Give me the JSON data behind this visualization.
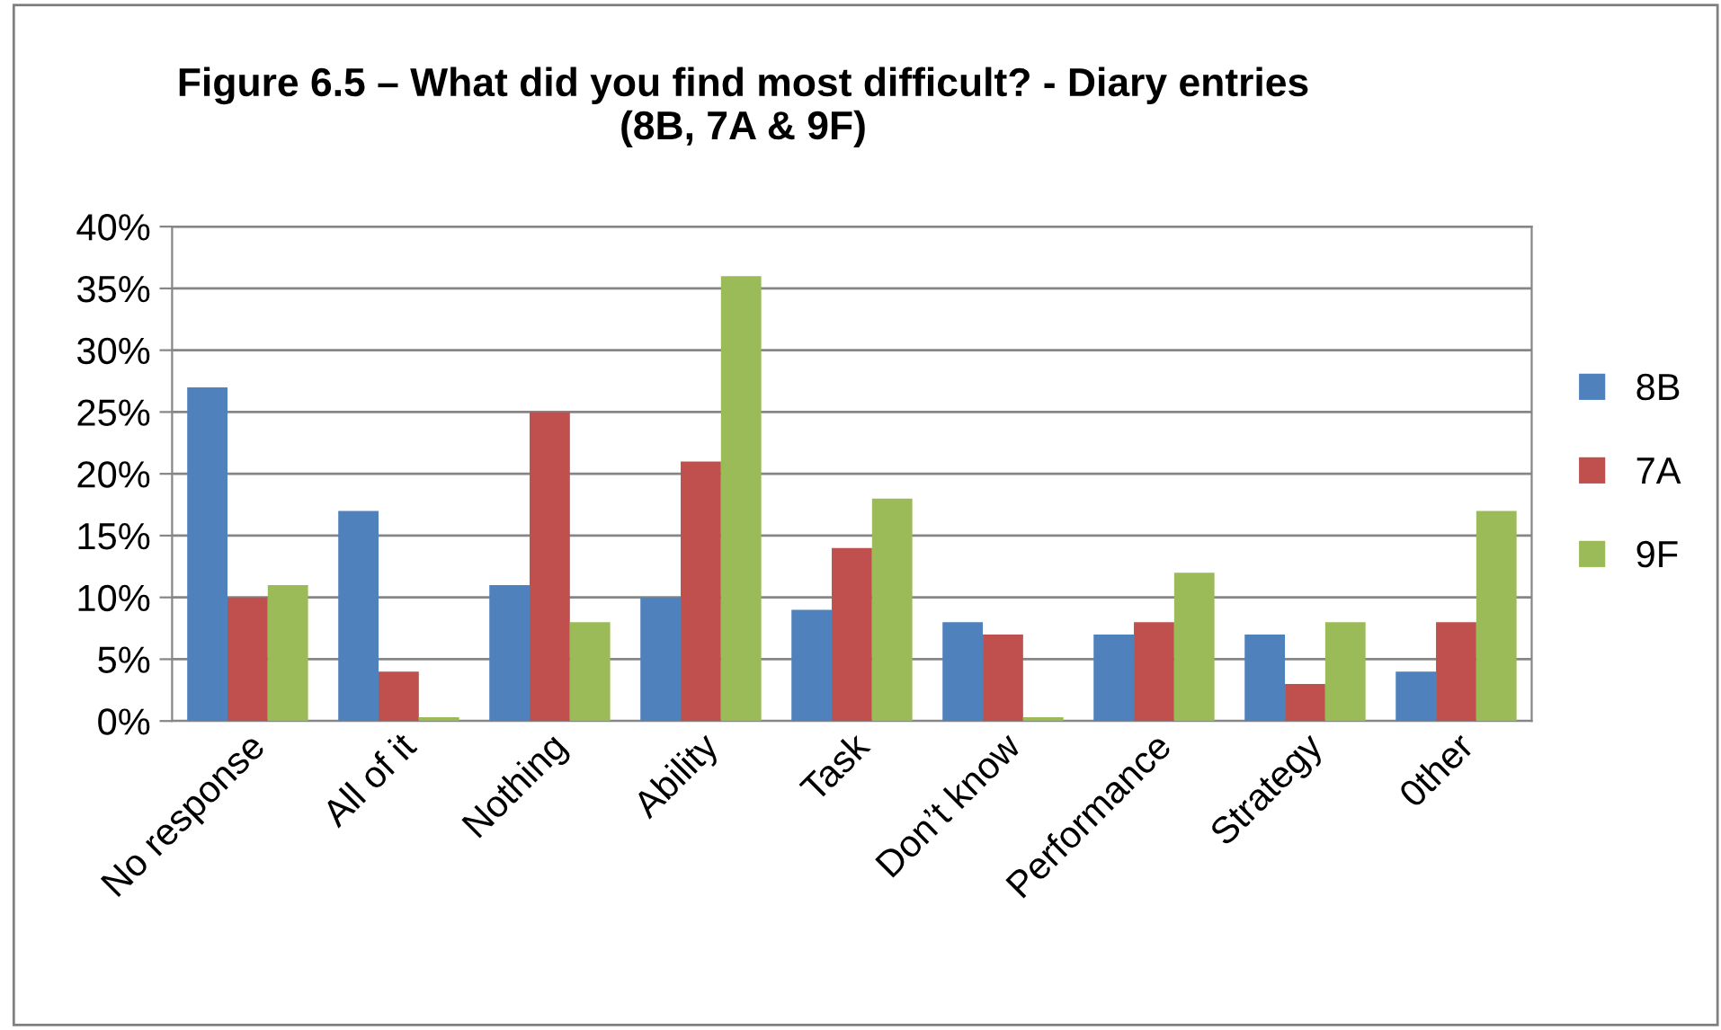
{
  "chart_data": {
    "type": "bar",
    "title": "Figure 6.5 – What did you find most difficult? - Diary entries\n(8B, 7A & 9F)",
    "categories": [
      "No response",
      "All of it",
      "Nothing",
      "Ability",
      "Task",
      "Don’t know",
      "Performance",
      "Strategy",
      "0ther"
    ],
    "series": [
      {
        "name": "8B",
        "color": "#4f81bd",
        "values": [
          27,
          17,
          11,
          10,
          9,
          8,
          7,
          7,
          4
        ]
      },
      {
        "name": "7A",
        "color": "#c0504d",
        "values": [
          10,
          4,
          25,
          21,
          14,
          7,
          8,
          3,
          8
        ]
      },
      {
        "name": "9F",
        "color": "#9bbb59",
        "values": [
          11,
          0.3,
          8,
          36,
          18,
          0.3,
          12,
          8,
          17
        ]
      }
    ],
    "ylim": [
      0,
      40
    ],
    "yticks": [
      {
        "value": 0,
        "label": "0%"
      },
      {
        "value": 5,
        "label": "5%"
      },
      {
        "value": 10,
        "label": "10%"
      },
      {
        "value": 15,
        "label": "15%"
      },
      {
        "value": 20,
        "label": "20%"
      },
      {
        "value": 25,
        "label": "25%"
      },
      {
        "value": 30,
        "label": "30%"
      },
      {
        "value": 35,
        "label": "35%"
      },
      {
        "value": 40,
        "label": "40%"
      }
    ],
    "grid": "y",
    "legend": "right"
  }
}
